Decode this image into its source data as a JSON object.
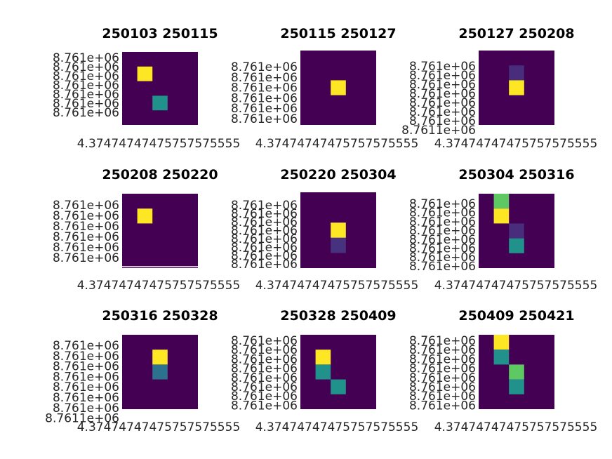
{
  "figure": {
    "layout": "3x3 grid of heatmap panels"
  },
  "colors": {
    "background": "#440154",
    "yellow": "#fde725",
    "green": "#5ec962",
    "teal": "#21918c",
    "blue_teal": "#2c728e",
    "indigo": "#472d7b",
    "purple": "#46327e"
  },
  "chart_data": [
    {
      "type": "heatmap",
      "title": "250103 250115",
      "cols": 5,
      "rows": 5,
      "ytick_labels": [
        "8.761e+06",
        "8.761e+06",
        "8.761e+06",
        "8.761e+06",
        "8.761e+06",
        "8.761e+06",
        "8.761e+06"
      ],
      "xtick_text": "4.37474747475757575555",
      "bottom_line": false,
      "cells": [
        {
          "col": 1,
          "row": 1,
          "color": "#fde725"
        },
        {
          "col": 2,
          "row": 3,
          "color": "#21918c"
        }
      ]
    },
    {
      "type": "heatmap",
      "title": "250115 250127",
      "cols": 5,
      "rows": 5,
      "ytick_labels": [
        "8.761e+06",
        "8.761e+06",
        "8.761e+06",
        "8.761e+06",
        "8.761e+06",
        "8.761e+06"
      ],
      "xtick_text": "4.37474747475757575555",
      "bottom_line": false,
      "cells": [
        {
          "col": 2,
          "row": 2,
          "color": "#fde725"
        }
      ]
    },
    {
      "type": "heatmap",
      "title": "250127 250208",
      "cols": 5,
      "rows": 5,
      "ytick_labels": [
        "8.761e+06",
        "8.761e+06",
        "8.761e+06",
        "8.761e+06",
        "8.761e+06",
        "8.761e+06",
        "8.761e+06",
        "8.7611e+06"
      ],
      "xtick_text": "4.37474747475757575555",
      "bottom_line": false,
      "cells": [
        {
          "col": 2,
          "row": 1,
          "color": "#472d7b"
        },
        {
          "col": 2,
          "row": 2,
          "color": "#fde725"
        }
      ]
    },
    {
      "type": "heatmap",
      "title": "250208 250220",
      "cols": 5,
      "rows": 5,
      "ytick_labels": [
        "8.761e+06",
        "8.761e+06",
        "8.761e+06",
        "8.761e+06",
        "8.761e+06",
        "8.761e+06"
      ],
      "xtick_text": "4.37474747475757575555",
      "bottom_line": true,
      "cells": [
        {
          "col": 1,
          "row": 1,
          "color": "#fde725"
        }
      ]
    },
    {
      "type": "heatmap",
      "title": "250220 250304",
      "cols": 5,
      "rows": 5,
      "ytick_labels": [
        "8.761e+06",
        "8.761e+06",
        "8.761e+06",
        "8.761e+06",
        "8.761e+06",
        "8.761e+06",
        "8.761e+06",
        "8.761e+06"
      ],
      "xtick_text": "4.37474747475757575555",
      "bottom_line": false,
      "cells": [
        {
          "col": 2,
          "row": 2,
          "color": "#fde725"
        },
        {
          "col": 2,
          "row": 3,
          "color": "#46327e"
        }
      ]
    },
    {
      "type": "heatmap",
      "title": "250304 250316",
      "cols": 5,
      "rows": 5,
      "ytick_labels": [
        "8.761e+06",
        "8.761e+06",
        "8.761e+06",
        "8.761e+06",
        "8.761e+06",
        "8.761e+06",
        "8.761e+06",
        "8.761e+06"
      ],
      "xtick_text": "4.37474747475757575555",
      "bottom_line": false,
      "cells": [
        {
          "col": 1,
          "row": 0,
          "color": "#5ec962"
        },
        {
          "col": 1,
          "row": 1,
          "color": "#fde725"
        },
        {
          "col": 2,
          "row": 2,
          "color": "#472d7b"
        },
        {
          "col": 2,
          "row": 3,
          "color": "#21918c"
        }
      ]
    },
    {
      "type": "heatmap",
      "title": "250316 250328",
      "cols": 5,
      "rows": 5,
      "ytick_labels": [
        "8.761e+06",
        "8.761e+06",
        "8.761e+06",
        "8.761e+06",
        "8.761e+06",
        "8.761e+06",
        "8.761e+06",
        "8.7611e+06"
      ],
      "xtick_text": "4.37474747475757575555",
      "bottom_line": false,
      "cells": [
        {
          "col": 2,
          "row": 1,
          "color": "#fde725"
        },
        {
          "col": 2,
          "row": 2,
          "color": "#2c728e"
        }
      ]
    },
    {
      "type": "heatmap",
      "title": "250328 250409",
      "cols": 5,
      "rows": 5,
      "ytick_labels": [
        "8.761e+06",
        "8.761e+06",
        "8.761e+06",
        "8.761e+06",
        "8.761e+06",
        "8.761e+06",
        "8.761e+06",
        "8.761e+06"
      ],
      "xtick_text": "4.37474747475757575555",
      "bottom_line": false,
      "cells": [
        {
          "col": 1,
          "row": 1,
          "color": "#fde725"
        },
        {
          "col": 1,
          "row": 2,
          "color": "#21918c"
        },
        {
          "col": 2,
          "row": 3,
          "color": "#21918c"
        }
      ]
    },
    {
      "type": "heatmap",
      "title": "250409 250421",
      "cols": 5,
      "rows": 5,
      "ytick_labels": [
        "8.761e+06",
        "8.761e+06",
        "8.761e+06",
        "8.761e+06",
        "8.761e+06",
        "8.761e+06",
        "8.761e+06",
        "8.761e+06"
      ],
      "xtick_text": "4.37474747475757575555",
      "bottom_line": false,
      "cells": [
        {
          "col": 1,
          "row": 0,
          "color": "#fde725"
        },
        {
          "col": 1,
          "row": 1,
          "color": "#21918c"
        },
        {
          "col": 2,
          "row": 2,
          "color": "#5ec962"
        },
        {
          "col": 2,
          "row": 3,
          "color": "#21918c"
        }
      ]
    }
  ]
}
